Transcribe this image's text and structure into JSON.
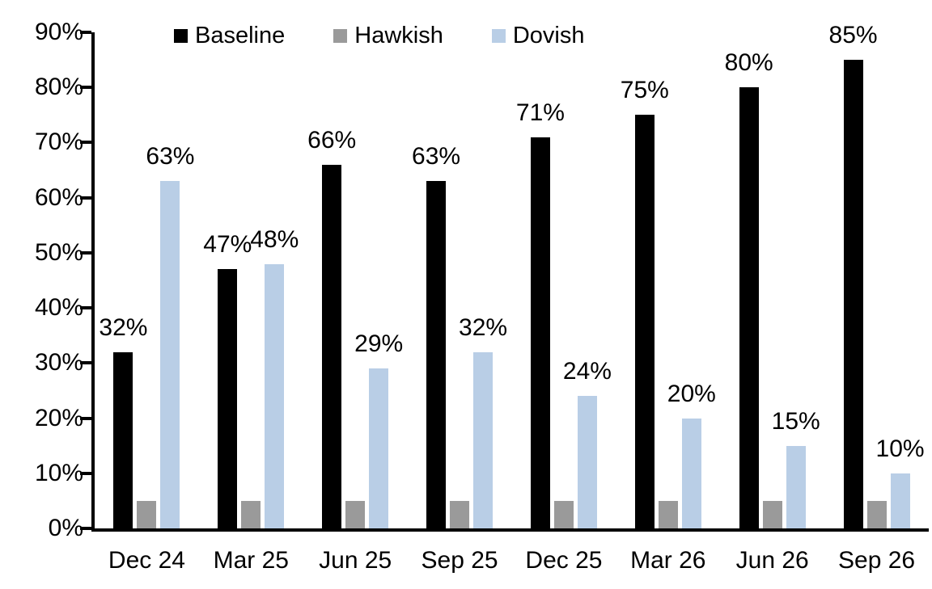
{
  "chart_data": {
    "type": "bar",
    "title": "",
    "xlabel": "",
    "ylabel": "",
    "grid": false,
    "categories": [
      "Dec 24",
      "Mar 25",
      "Jun 25",
      "Sep 25",
      "Dec 25",
      "Mar 26",
      "Jun 26",
      "Sep 26"
    ],
    "series": [
      {
        "name": "Baseline",
        "color": "#000000",
        "values": [
          32,
          47,
          66,
          63,
          71,
          75,
          80,
          85
        ],
        "labels": [
          "32%",
          "47%",
          "66%",
          "63%",
          "71%",
          "75%",
          "80%",
          "85%"
        ],
        "show_labels": true
      },
      {
        "name": "Hawkish",
        "color": "#9a9a9a",
        "values": [
          5,
          5,
          5,
          5,
          5,
          5,
          5,
          5
        ],
        "labels": [],
        "show_labels": false
      },
      {
        "name": "Dovish",
        "color": "#b9cee6",
        "values": [
          63,
          48,
          29,
          32,
          24,
          20,
          15,
          10
        ],
        "labels": [
          "63%",
          "48%",
          "29%",
          "32%",
          "24%",
          "20%",
          "15%",
          "10%"
        ],
        "show_labels": true
      }
    ],
    "y_axis": {
      "min": 0,
      "max": 90,
      "step": 10,
      "tick_labels": [
        "0%",
        "10%",
        "20%",
        "30%",
        "40%",
        "50%",
        "60%",
        "70%",
        "80%",
        "90%"
      ]
    },
    "legend": {
      "position": "top",
      "entries": [
        "Baseline",
        "Hawkish",
        "Dovish"
      ]
    }
  }
}
